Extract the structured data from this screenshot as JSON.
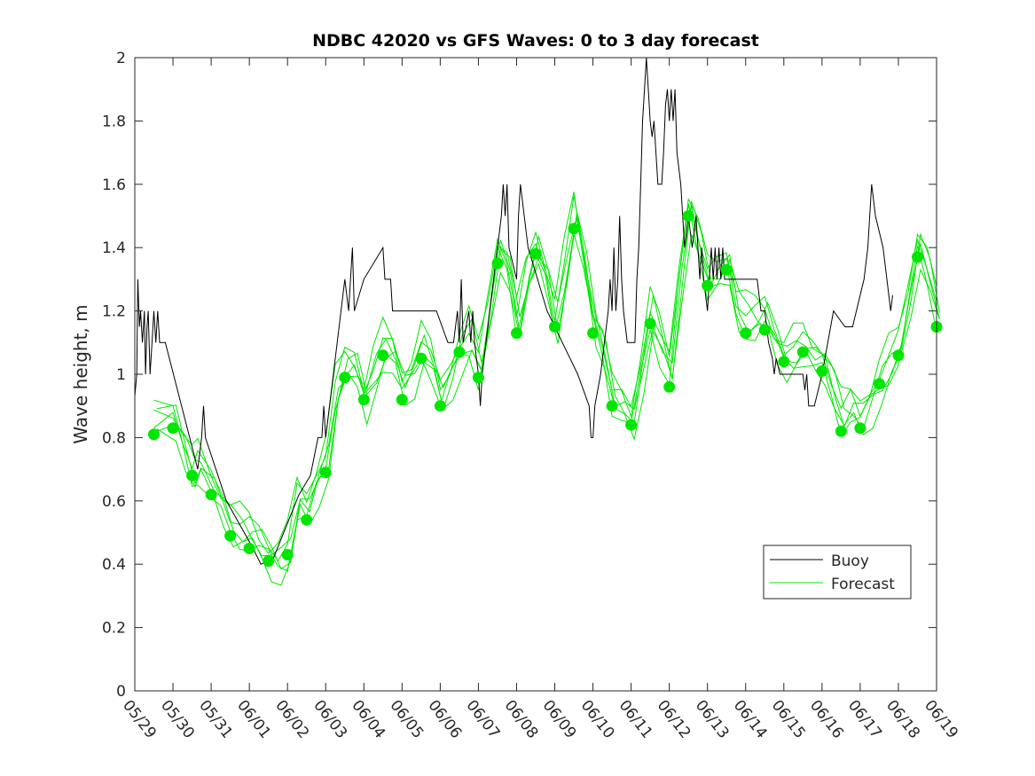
{
  "chart_data": {
    "type": "line",
    "title": "NDBC 42020 vs GFS Waves: 0 to 3 day forecast",
    "xlabel": "",
    "ylabel": "Wave height, m",
    "xlim": [
      0,
      21
    ],
    "ylim": [
      0,
      2
    ],
    "grid": false,
    "legend_position": "lower-right",
    "x_tick_labels": [
      "05/29",
      "05/30",
      "05/31",
      "06/01",
      "06/02",
      "06/03",
      "06/04",
      "06/05",
      "06/06",
      "06/07",
      "06/08",
      "06/09",
      "06/10",
      "06/11",
      "06/12",
      "06/13",
      "06/14",
      "06/15",
      "06/16",
      "06/17",
      "06/18",
      "06/19"
    ],
    "y_ticks": [
      0,
      0.2,
      0.4,
      0.6,
      0.8,
      1,
      1.2,
      1.4,
      1.6,
      1.8,
      2
    ],
    "y_tick_labels": [
      "0",
      "0.2",
      "0.4",
      "0.6",
      "0.8",
      "1",
      "1.2",
      "1.4",
      "1.6",
      "1.8",
      "2"
    ],
    "colors": {
      "buoy": "#000000",
      "forecast": "#00e600",
      "axis": "#262626"
    },
    "legend": [
      {
        "label": "Buoy",
        "color": "#000000"
      },
      {
        "label": "Forecast",
        "color": "#00e600"
      }
    ],
    "series": [
      {
        "name": "Buoy",
        "style": "line",
        "color": "#000000",
        "points": [
          [
            0,
            0.93
          ],
          [
            0.05,
            1.0
          ],
          [
            0.08,
            1.3
          ],
          [
            0.12,
            1.15
          ],
          [
            0.15,
            1.2
          ],
          [
            0.2,
            1.1
          ],
          [
            0.25,
            1.2
          ],
          [
            0.28,
            1.0
          ],
          [
            0.32,
            1.15
          ],
          [
            0.35,
            1.2
          ],
          [
            0.4,
            1.0
          ],
          [
            0.45,
            1.1
          ],
          [
            0.5,
            1.2
          ],
          [
            0.55,
            1.1
          ],
          [
            0.6,
            1.2
          ],
          [
            0.65,
            1.1
          ],
          [
            0.8,
            1.1
          ],
          [
            1.65,
            0.7
          ],
          [
            1.75,
            0.8
          ],
          [
            1.8,
            0.9
          ],
          [
            1.85,
            0.8
          ],
          [
            2.4,
            0.6
          ],
          [
            3.1,
            0.45
          ],
          [
            3.3,
            0.4
          ],
          [
            3.5,
            0.41
          ],
          [
            3.6,
            0.41
          ],
          [
            4.3,
            0.62
          ],
          [
            4.6,
            0.68
          ],
          [
            4.8,
            0.8
          ],
          [
            4.9,
            0.8
          ],
          [
            4.95,
            0.9
          ],
          [
            5.0,
            0.8
          ],
          [
            5.3,
            1.1
          ],
          [
            5.5,
            1.3
          ],
          [
            5.6,
            1.2
          ],
          [
            5.65,
            1.3
          ],
          [
            5.7,
            1.4
          ],
          [
            5.75,
            1.2
          ],
          [
            6.0,
            1.3
          ],
          [
            6.5,
            1.4
          ],
          [
            6.55,
            1.3
          ],
          [
            6.7,
            1.3
          ],
          [
            6.75,
            1.2
          ],
          [
            7.0,
            1.2
          ],
          [
            7.5,
            1.2
          ],
          [
            7.9,
            1.2
          ],
          [
            8.2,
            1.1
          ],
          [
            8.35,
            1.1
          ],
          [
            8.45,
            1.2
          ],
          [
            8.5,
            1.1
          ],
          [
            8.55,
            1.3
          ],
          [
            8.6,
            1.1
          ],
          [
            8.75,
            1.2
          ],
          [
            8.8,
            1.1
          ],
          [
            8.85,
            1.2
          ],
          [
            8.9,
            1.1
          ],
          [
            9.0,
            1.0
          ],
          [
            9.05,
            0.9
          ],
          [
            9.1,
            1.0
          ],
          [
            9.2,
            1.1
          ],
          [
            9.3,
            1.2
          ],
          [
            9.4,
            1.3
          ],
          [
            9.5,
            1.4
          ],
          [
            9.6,
            1.5
          ],
          [
            9.65,
            1.6
          ],
          [
            9.7,
            1.5
          ],
          [
            9.75,
            1.6
          ],
          [
            9.8,
            1.4
          ],
          [
            10.0,
            1.3
          ],
          [
            10.05,
            1.5
          ],
          [
            10.1,
            1.6
          ],
          [
            10.2,
            1.5
          ],
          [
            10.3,
            1.4
          ],
          [
            10.8,
            1.2
          ],
          [
            11.2,
            1.1
          ],
          [
            11.6,
            1.0
          ],
          [
            11.9,
            0.9
          ],
          [
            11.95,
            0.8
          ],
          [
            12.0,
            0.8
          ],
          [
            12.05,
            0.9
          ],
          [
            12.2,
            1.0
          ],
          [
            12.3,
            1.1
          ],
          [
            12.4,
            1.2
          ],
          [
            12.45,
            1.3
          ],
          [
            12.5,
            1.2
          ],
          [
            12.55,
            1.4
          ],
          [
            12.6,
            1.2
          ],
          [
            12.65,
            1.3
          ],
          [
            12.7,
            1.5
          ],
          [
            12.75,
            1.3
          ],
          [
            12.8,
            1.2
          ],
          [
            12.9,
            1.1
          ],
          [
            13.0,
            1.1
          ],
          [
            13.1,
            1.1
          ],
          [
            13.15,
            1.3
          ],
          [
            13.2,
            1.4
          ],
          [
            13.25,
            1.6
          ],
          [
            13.3,
            1.8
          ],
          [
            13.35,
            1.9
          ],
          [
            13.4,
            2.0
          ],
          [
            13.45,
            1.9
          ],
          [
            13.5,
            1.8
          ],
          [
            13.55,
            1.75
          ],
          [
            13.6,
            1.8
          ],
          [
            13.65,
            1.7
          ],
          [
            13.7,
            1.6
          ],
          [
            13.8,
            1.6
          ],
          [
            13.85,
            1.7
          ],
          [
            13.9,
            1.85
          ],
          [
            13.95,
            1.9
          ],
          [
            14.0,
            1.8
          ],
          [
            14.05,
            1.9
          ],
          [
            14.1,
            1.8
          ],
          [
            14.15,
            1.9
          ],
          [
            14.2,
            1.7
          ],
          [
            14.3,
            1.6
          ],
          [
            14.4,
            1.4
          ],
          [
            14.5,
            1.5
          ],
          [
            14.6,
            1.4
          ],
          [
            14.7,
            1.5
          ],
          [
            14.8,
            1.3
          ],
          [
            14.85,
            1.4
          ],
          [
            14.9,
            1.3
          ],
          [
            15.0,
            1.2
          ],
          [
            15.1,
            1.4
          ],
          [
            15.15,
            1.3
          ],
          [
            15.2,
            1.4
          ],
          [
            15.25,
            1.3
          ],
          [
            15.3,
            1.4
          ],
          [
            15.35,
            1.3
          ],
          [
            15.4,
            1.4
          ],
          [
            15.45,
            1.3
          ],
          [
            15.5,
            1.3
          ],
          [
            15.6,
            1.3
          ],
          [
            16.0,
            1.3
          ],
          [
            16.3,
            1.3
          ],
          [
            16.4,
            1.2
          ],
          [
            16.5,
            1.2
          ],
          [
            16.6,
            1.1
          ],
          [
            16.7,
            1.05
          ],
          [
            16.75,
            1.0
          ],
          [
            16.8,
            1.05
          ],
          [
            16.9,
            1.0
          ],
          [
            17.0,
            1.0
          ],
          [
            17.5,
            1.0
          ],
          [
            17.55,
            0.95
          ],
          [
            17.6,
            1.0
          ],
          [
            17.65,
            0.9
          ],
          [
            17.7,
            0.9
          ],
          [
            17.8,
            0.9
          ],
          [
            18.0,
            1.0
          ],
          [
            18.3,
            1.2
          ],
          [
            18.6,
            1.15
          ],
          [
            18.8,
            1.15
          ],
          [
            18.9,
            1.2
          ],
          [
            19.0,
            1.25
          ],
          [
            19.1,
            1.3
          ],
          [
            19.2,
            1.4
          ],
          [
            19.3,
            1.6
          ],
          [
            19.4,
            1.5
          ],
          [
            19.5,
            1.45
          ],
          [
            19.6,
            1.4
          ],
          [
            19.7,
            1.3
          ],
          [
            19.8,
            1.2
          ],
          [
            19.85,
            1.25
          ]
        ]
      },
      {
        "name": "Forecast",
        "style": "line",
        "color": "#00e600",
        "points": [
          [
            0.5,
            0.81
          ],
          [
            1.0,
            0.83
          ],
          [
            1.25,
            0.76
          ],
          [
            1.5,
            0.68
          ],
          [
            1.65,
            0.7
          ],
          [
            2.0,
            0.62
          ],
          [
            2.25,
            0.56
          ],
          [
            2.5,
            0.49
          ],
          [
            2.75,
            0.46
          ],
          [
            3.0,
            0.45
          ],
          [
            3.25,
            0.43
          ],
          [
            3.5,
            0.41
          ],
          [
            3.75,
            0.4
          ],
          [
            4.0,
            0.43
          ],
          [
            4.25,
            0.58
          ],
          [
            4.5,
            0.54
          ],
          [
            4.75,
            0.62
          ],
          [
            5.0,
            0.69
          ],
          [
            5.25,
            0.9
          ],
          [
            5.5,
            0.99
          ],
          [
            5.75,
            1.0
          ],
          [
            6.0,
            0.92
          ],
          [
            6.25,
            1.0
          ],
          [
            6.5,
            1.06
          ],
          [
            6.75,
            1.02
          ],
          [
            7.0,
            0.92
          ],
          [
            7.25,
            0.96
          ],
          [
            7.5,
            1.05
          ],
          [
            7.75,
            1.0
          ],
          [
            8.0,
            0.9
          ],
          [
            8.25,
            0.98
          ],
          [
            8.5,
            1.07
          ],
          [
            8.75,
            1.1
          ],
          [
            9.0,
            0.99
          ],
          [
            9.25,
            1.15
          ],
          [
            9.5,
            1.35
          ],
          [
            9.75,
            1.3
          ],
          [
            10.0,
            1.13
          ],
          [
            10.25,
            1.28
          ],
          [
            10.5,
            1.38
          ],
          [
            10.75,
            1.3
          ],
          [
            11.0,
            1.15
          ],
          [
            11.25,
            1.3
          ],
          [
            11.5,
            1.46
          ],
          [
            11.75,
            1.3
          ],
          [
            12.0,
            1.13
          ],
          [
            12.25,
            1.05
          ],
          [
            12.5,
            0.9
          ],
          [
            12.75,
            0.88
          ],
          [
            13.0,
            0.84
          ],
          [
            13.25,
            1.0
          ],
          [
            13.5,
            1.16
          ],
          [
            13.75,
            1.05
          ],
          [
            14.0,
            0.96
          ],
          [
            14.25,
            1.25
          ],
          [
            14.5,
            1.5
          ],
          [
            14.75,
            1.4
          ],
          [
            15.0,
            1.28
          ],
          [
            15.25,
            1.3
          ],
          [
            15.5,
            1.33
          ],
          [
            15.75,
            1.18
          ],
          [
            16.0,
            1.13
          ],
          [
            16.25,
            1.12
          ],
          [
            16.5,
            1.14
          ],
          [
            16.75,
            1.08
          ],
          [
            17.0,
            1.04
          ],
          [
            17.25,
            1.06
          ],
          [
            17.5,
            1.07
          ],
          [
            17.75,
            1.03
          ],
          [
            18.0,
            1.01
          ],
          [
            18.25,
            0.92
          ],
          [
            18.5,
            0.82
          ],
          [
            18.75,
            0.85
          ],
          [
            19.0,
            0.83
          ],
          [
            19.25,
            0.9
          ],
          [
            19.5,
            0.97
          ],
          [
            19.75,
            1.02
          ],
          [
            20.0,
            1.06
          ],
          [
            20.25,
            1.2
          ],
          [
            20.5,
            1.37
          ],
          [
            20.75,
            1.28
          ],
          [
            21.0,
            1.15
          ]
        ]
      }
    ],
    "markers": {
      "name": "Forecast",
      "color": "#00e600",
      "points": [
        [
          0.5,
          0.81
        ],
        [
          1.0,
          0.83
        ],
        [
          1.5,
          0.68
        ],
        [
          2.0,
          0.62
        ],
        [
          2.5,
          0.49
        ],
        [
          3.0,
          0.45
        ],
        [
          3.5,
          0.41
        ],
        [
          4.0,
          0.43
        ],
        [
          4.5,
          0.54
        ],
        [
          5.0,
          0.69
        ],
        [
          5.5,
          0.99
        ],
        [
          6.0,
          0.92
        ],
        [
          6.5,
          1.06
        ],
        [
          7.0,
          0.92
        ],
        [
          7.5,
          1.05
        ],
        [
          8.0,
          0.9
        ],
        [
          8.5,
          1.07
        ],
        [
          9.0,
          0.99
        ],
        [
          9.5,
          1.35
        ],
        [
          10.0,
          1.13
        ],
        [
          10.5,
          1.38
        ],
        [
          11.0,
          1.15
        ],
        [
          11.5,
          1.46
        ],
        [
          12.0,
          1.13
        ],
        [
          12.5,
          0.9
        ],
        [
          13.0,
          0.84
        ],
        [
          13.5,
          1.16
        ],
        [
          14.0,
          0.96
        ],
        [
          14.5,
          1.5
        ],
        [
          15.0,
          1.28
        ],
        [
          15.5,
          1.33
        ],
        [
          16.0,
          1.13
        ],
        [
          16.5,
          1.14
        ],
        [
          17.0,
          1.04
        ],
        [
          17.5,
          1.07
        ],
        [
          18.0,
          1.01
        ],
        [
          18.5,
          0.82
        ],
        [
          19.0,
          0.83
        ],
        [
          19.5,
          0.97
        ],
        [
          20.0,
          1.06
        ],
        [
          20.5,
          1.37
        ],
        [
          21.0,
          1.15
        ]
      ]
    }
  }
}
